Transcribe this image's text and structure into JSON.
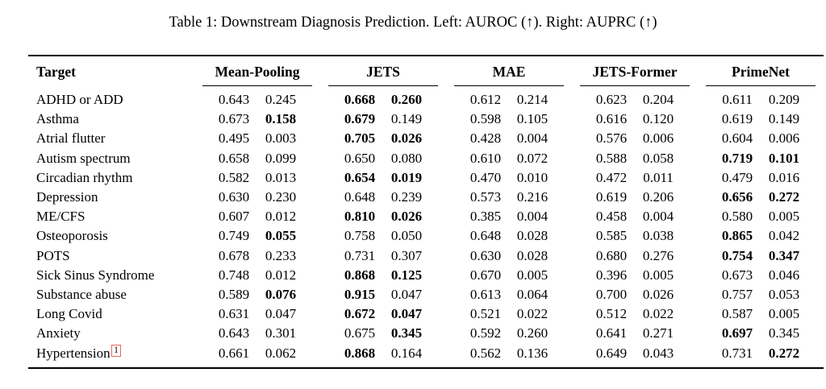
{
  "caption": "Table 1: Downstream Diagnosis Prediction. Left: AUROC (↑). Right: AUPRC (↑)",
  "footnote_box_color": "#f0615f",
  "table": {
    "target_header": "Target",
    "method_headers": [
      "Mean-Pooling",
      "JETS",
      "MAE",
      "JETS-Former",
      "PrimeNet"
    ],
    "metric_note": "left value = AUROC, right value = AUPRC",
    "rows": [
      {
        "target": "ADHD or ADD",
        "values": [
          "0.643",
          "0.245",
          "0.668",
          "0.260",
          "0.612",
          "0.214",
          "0.623",
          "0.204",
          "0.611",
          "0.209"
        ],
        "bold": [
          false,
          false,
          true,
          true,
          false,
          false,
          false,
          false,
          false,
          false
        ]
      },
      {
        "target": "Asthma",
        "values": [
          "0.673",
          "0.158",
          "0.679",
          "0.149",
          "0.598",
          "0.105",
          "0.616",
          "0.120",
          "0.619",
          "0.149"
        ],
        "bold": [
          false,
          true,
          true,
          false,
          false,
          false,
          false,
          false,
          false,
          false
        ]
      },
      {
        "target": "Atrial flutter",
        "values": [
          "0.495",
          "0.003",
          "0.705",
          "0.026",
          "0.428",
          "0.004",
          "0.576",
          "0.006",
          "0.604",
          "0.006"
        ],
        "bold": [
          false,
          false,
          true,
          true,
          false,
          false,
          false,
          false,
          false,
          false
        ]
      },
      {
        "target": "Autism spectrum",
        "values": [
          "0.658",
          "0.099",
          "0.650",
          "0.080",
          "0.610",
          "0.072",
          "0.588",
          "0.058",
          "0.719",
          "0.101"
        ],
        "bold": [
          false,
          false,
          false,
          false,
          false,
          false,
          false,
          false,
          true,
          true
        ]
      },
      {
        "target": "Circadian rhythm",
        "values": [
          "0.582",
          "0.013",
          "0.654",
          "0.019",
          "0.470",
          "0.010",
          "0.472",
          "0.011",
          "0.479",
          "0.016"
        ],
        "bold": [
          false,
          false,
          true,
          true,
          false,
          false,
          false,
          false,
          false,
          false
        ]
      },
      {
        "target": "Depression",
        "values": [
          "0.630",
          "0.230",
          "0.648",
          "0.239",
          "0.573",
          "0.216",
          "0.619",
          "0.206",
          "0.656",
          "0.272"
        ],
        "bold": [
          false,
          false,
          false,
          false,
          false,
          false,
          false,
          false,
          true,
          true
        ]
      },
      {
        "target": "ME/CFS",
        "values": [
          "0.607",
          "0.012",
          "0.810",
          "0.026",
          "0.385",
          "0.004",
          "0.458",
          "0.004",
          "0.580",
          "0.005"
        ],
        "bold": [
          false,
          false,
          true,
          true,
          false,
          false,
          false,
          false,
          false,
          false
        ]
      },
      {
        "target": "Osteoporosis",
        "values": [
          "0.749",
          "0.055",
          "0.758",
          "0.050",
          "0.648",
          "0.028",
          "0.585",
          "0.038",
          "0.865",
          "0.042"
        ],
        "bold": [
          false,
          true,
          false,
          false,
          false,
          false,
          false,
          false,
          true,
          false
        ]
      },
      {
        "target": "POTS",
        "values": [
          "0.678",
          "0.233",
          "0.731",
          "0.307",
          "0.630",
          "0.028",
          "0.680",
          "0.276",
          "0.754",
          "0.347"
        ],
        "bold": [
          false,
          false,
          false,
          false,
          false,
          false,
          false,
          false,
          true,
          true
        ]
      },
      {
        "target": "Sick Sinus Syndrome",
        "values": [
          "0.748",
          "0.012",
          "0.868",
          "0.125",
          "0.670",
          "0.005",
          "0.396",
          "0.005",
          "0.673",
          "0.046"
        ],
        "bold": [
          false,
          false,
          true,
          true,
          false,
          false,
          false,
          false,
          false,
          false
        ]
      },
      {
        "target": "Substance abuse",
        "values": [
          "0.589",
          "0.076",
          "0.915",
          "0.047",
          "0.613",
          "0.064",
          "0.700",
          "0.026",
          "0.757",
          "0.053"
        ],
        "bold": [
          false,
          true,
          true,
          false,
          false,
          false,
          false,
          false,
          false,
          false
        ]
      },
      {
        "target": "Long Covid",
        "values": [
          "0.631",
          "0.047",
          "0.672",
          "0.047",
          "0.521",
          "0.022",
          "0.512",
          "0.022",
          "0.587",
          "0.005"
        ],
        "bold": [
          false,
          false,
          true,
          true,
          false,
          false,
          false,
          false,
          false,
          false
        ]
      },
      {
        "target": "Anxiety",
        "values": [
          "0.643",
          "0.301",
          "0.675",
          "0.345",
          "0.592",
          "0.260",
          "0.641",
          "0.271",
          "0.697",
          "0.345"
        ],
        "bold": [
          false,
          false,
          false,
          true,
          false,
          false,
          false,
          false,
          true,
          false
        ]
      },
      {
        "target": "Hypertension",
        "target_sup": "1",
        "values": [
          "0.661",
          "0.062",
          "0.868",
          "0.164",
          "0.562",
          "0.136",
          "0.649",
          "0.043",
          "0.731",
          "0.272"
        ],
        "bold": [
          false,
          false,
          true,
          false,
          false,
          false,
          false,
          false,
          false,
          true
        ]
      }
    ]
  }
}
